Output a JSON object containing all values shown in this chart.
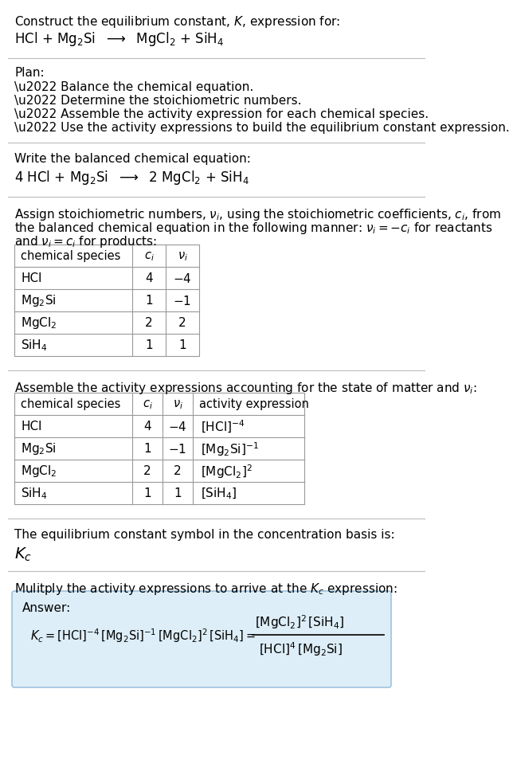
{
  "bg_color": "#ffffff",
  "answer_box_bg": "#ddeef8",
  "separator_color": "#bbbbbb",
  "table_border_color": "#999999",
  "text_color": "#000000",
  "title_line1": "Construct the equilibrium constant, $K$, expression for:",
  "title_line2": "HCl + Mg$_2$Si  $\\longrightarrow$  MgCl$_2$ + SiH$_4$",
  "plan_header": "Plan:",
  "plan_items": [
    "\\u2022 Balance the chemical equation.",
    "\\u2022 Determine the stoichiometric numbers.",
    "\\u2022 Assemble the activity expression for each chemical species.",
    "\\u2022 Use the activity expressions to build the equilibrium constant expression."
  ],
  "balanced_header": "Write the balanced chemical equation:",
  "balanced_eq": "4 HCl + Mg$_2$Si  $\\longrightarrow$  2 MgCl$_2$ + SiH$_4$",
  "stoich_header1": "Assign stoichiometric numbers, $\\nu_i$, using the stoichiometric coefficients, $c_i$, from",
  "stoich_header2": "the balanced chemical equation in the following manner: $\\nu_i = -c_i$ for reactants",
  "stoich_header3": "and $\\nu_i = c_i$ for products:",
  "table1_cols": [
    "chemical species",
    "$c_i$",
    "$\\nu_i$"
  ],
  "table1_rows": [
    [
      "HCl",
      "4",
      "$-4$"
    ],
    [
      "Mg$_2$Si",
      "1",
      "$-1$"
    ],
    [
      "MgCl$_2$",
      "2",
      "2"
    ],
    [
      "SiH$_4$",
      "1",
      "1"
    ]
  ],
  "activity_header": "Assemble the activity expressions accounting for the state of matter and $\\nu_i$:",
  "table2_cols": [
    "chemical species",
    "$c_i$",
    "$\\nu_i$",
    "activity expression"
  ],
  "table2_rows": [
    [
      "HCl",
      "4",
      "$-4$",
      "$[\\mathrm{HCl}]^{-4}$"
    ],
    [
      "Mg$_2$Si",
      "1",
      "$-1$",
      "$[\\mathrm{Mg_2Si}]^{-1}$"
    ],
    [
      "MgCl$_2$",
      "2",
      "2",
      "$[\\mathrm{MgCl_2}]^2$"
    ],
    [
      "SiH$_4$",
      "1",
      "1",
      "$[\\mathrm{SiH_4}]$"
    ]
  ],
  "kc_header": "The equilibrium constant symbol in the concentration basis is:",
  "kc_symbol": "$K_c$",
  "multiply_header": "Mulitply the activity expressions to arrive at the $K_c$ expression:"
}
